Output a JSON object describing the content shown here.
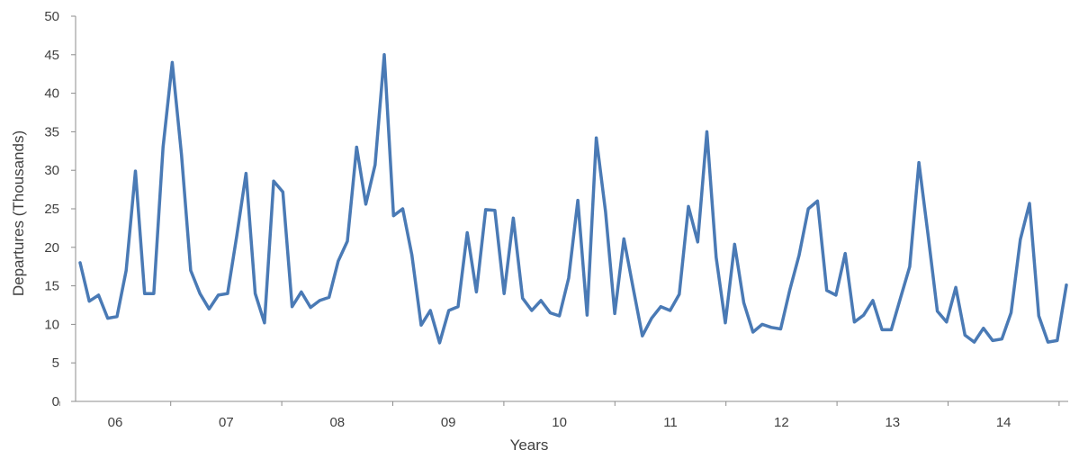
{
  "chart_data": {
    "type": "line",
    "xlabel": "Years",
    "ylabel": "Departures (Thousands)",
    "ylim": [
      0,
      50
    ],
    "yticks": [
      0,
      5,
      10,
      15,
      20,
      25,
      30,
      35,
      40,
      45,
      50
    ],
    "xtick_labels": [
      "06",
      "07",
      "08",
      "09",
      "10",
      "11",
      "12",
      "13",
      "14"
    ],
    "grid": false,
    "legend": "none",
    "line_color": "#4a7ab5",
    "series": [
      {
        "values": [
          18,
          13,
          13.8,
          10.8,
          11,
          17,
          29.9,
          14,
          14,
          33,
          44,
          32,
          17,
          14,
          12,
          13.8,
          14,
          21.5,
          29.6,
          14,
          10.2,
          28.6,
          27.2,
          12.3,
          14.2,
          12.2,
          13.1,
          13.5,
          18.2,
          20.8,
          33,
          25.6,
          30.7,
          45,
          24.1,
          25,
          19,
          9.9,
          11.8,
          7.6,
          11.8,
          12.3,
          21.9,
          14.2,
          24.9,
          24.8,
          14,
          23.8,
          13.4,
          11.8,
          13.1,
          11.5,
          11.1,
          16,
          26.1,
          11.2,
          34.2,
          24.6,
          11.4,
          21.1,
          14.7,
          8.5,
          10.8,
          12.3,
          11.8,
          13.9,
          25.3,
          20.7,
          35,
          18.7,
          10.2,
          20.4,
          12.8,
          9,
          10,
          9.6,
          9.4,
          14.5,
          19,
          25,
          26,
          14.4,
          13.8,
          19.2,
          10.3,
          11.2,
          13.1,
          9.3,
          9.3,
          13.4,
          17.5,
          31,
          21.5,
          11.7,
          10.3,
          14.8,
          8.6,
          7.7,
          9.5,
          7.9,
          8.1,
          11.5,
          21,
          25.7,
          11.1,
          7.7,
          7.9,
          15.1
        ]
      }
    ]
  }
}
